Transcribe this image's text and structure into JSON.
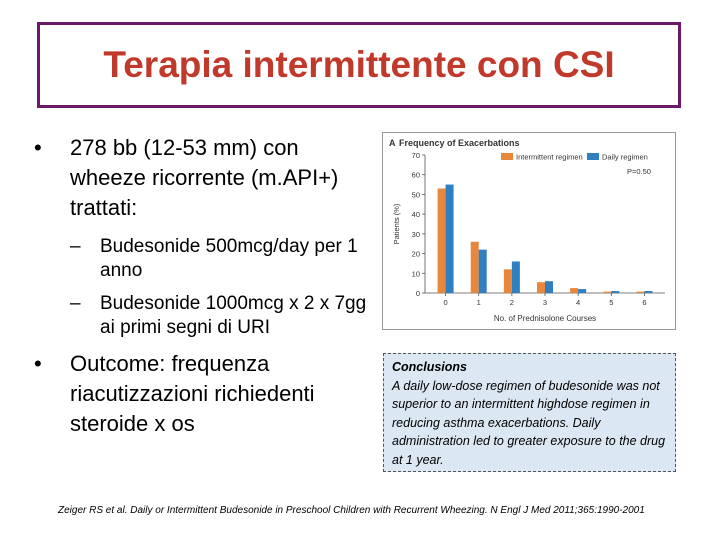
{
  "slide": {
    "title": "Terapia intermittente con CSI",
    "bullets": {
      "b1": "278 bb (12-53 mm) con wheeze ricorrente (m.API+) trattati:",
      "sub1": "Budesonide 500mcg/day per 1 anno",
      "sub2": "Budesonide 1000mcg x 2 x 7gg ai primi segni di URI",
      "b2": "Outcome: frequenza riacutizzazioni richiedenti steroide x os"
    },
    "bullet_symbol": "•",
    "dash_symbol": "–",
    "conclusions": {
      "heading": "Conclusions",
      "text": "A daily low-dose regimen of budesonide was not superior to an intermittent highdose regimen in reducing asthma exacerbations. Daily administration led to greater exposure to the drug at 1 year."
    },
    "citation": "Zeiger RS et al. Daily or Intermittent Budesonide in Preschool Children with Recurrent Wheezing. N Engl J Med 2011;365:1990-2001"
  },
  "chart_data": {
    "type": "bar",
    "panel_label": "A",
    "title": "Frequency of Exacerbations",
    "xlabel": "No. of Prednisolone Courses",
    "ylabel": "Patients (%)",
    "categories": [
      "0",
      "1",
      "2",
      "3",
      "4",
      "5",
      "6"
    ],
    "yticks": [
      0,
      10,
      20,
      30,
      40,
      50,
      60,
      70
    ],
    "ylim": [
      0,
      70
    ],
    "p_value_text": "P=0.50",
    "series": [
      {
        "name": "Intermittent regimen",
        "color": "#e8873a",
        "values": [
          53,
          26,
          12,
          5.5,
          2.5,
          0.7,
          0.7
        ]
      },
      {
        "name": "Daily regimen",
        "color": "#2f7fc1",
        "values": [
          55,
          22,
          16,
          6,
          2,
          1,
          1
        ]
      }
    ],
    "grid": false,
    "legend": "top-right"
  }
}
